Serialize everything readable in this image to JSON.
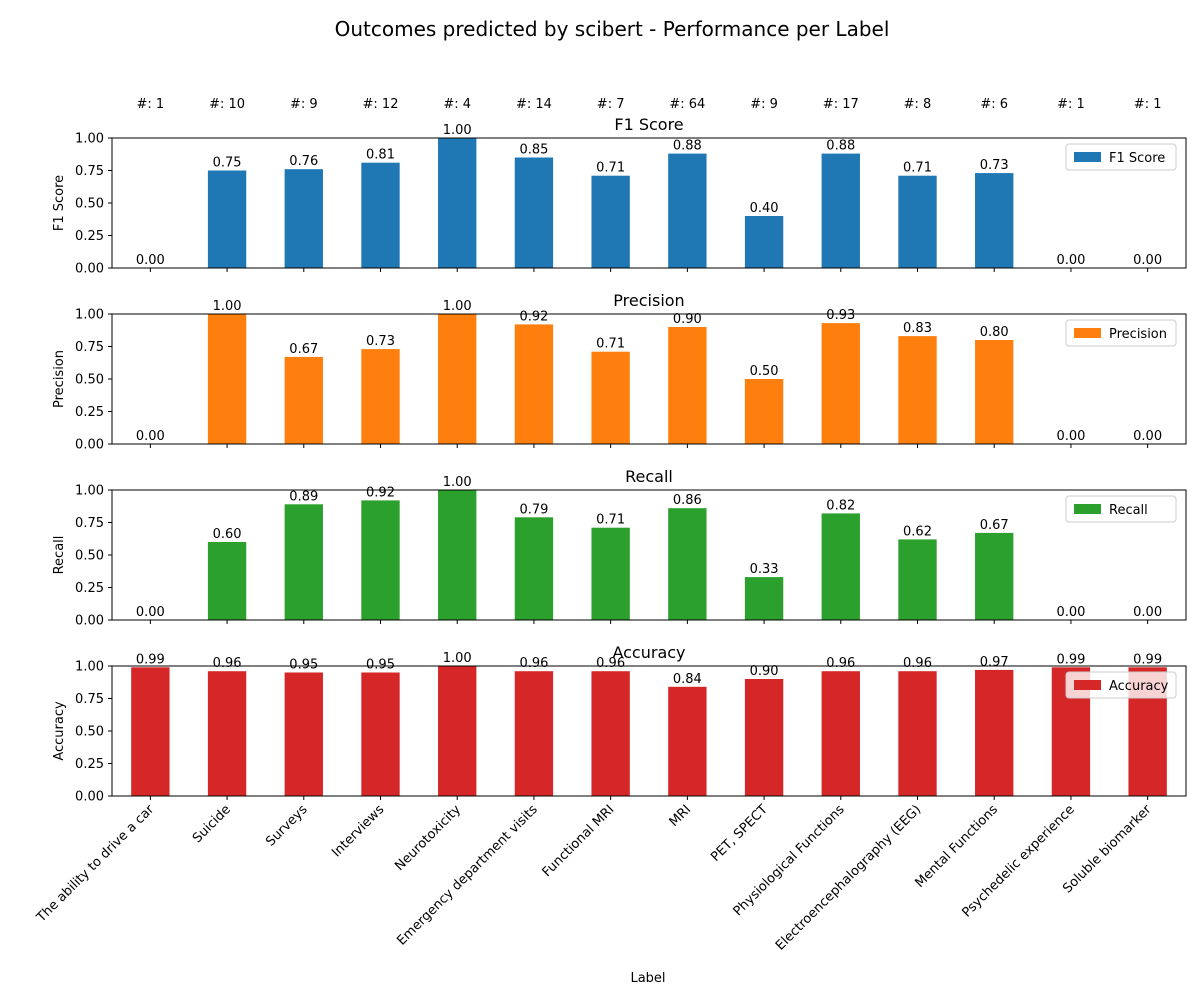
{
  "figure": {
    "title": "Outcomes predicted by scibert - Performance per Label",
    "xlabel": "Label"
  },
  "chart_data": {
    "type": "bar",
    "categories": [
      "The ability to drive a car",
      "Suicide",
      "Surveys",
      "Interviews",
      "Neurotoxicity",
      "Emergency department visits",
      "Functional MRI",
      "MRI",
      "PET, SPECT",
      "Physiological Functions",
      "Electroencephalography (EEG)",
      "Mental Functions",
      "Psychedelic experience",
      "Soluble biomarker"
    ],
    "counts": [
      "#: 1",
      "#: 10",
      "#: 9",
      "#: 12",
      "#: 4",
      "#: 14",
      "#: 7",
      "#: 64",
      "#: 9",
      "#: 17",
      "#: 8",
      "#: 6",
      "#: 1",
      "#: 1"
    ],
    "ylim": [
      0,
      1
    ],
    "yticks": [
      "0.00",
      "0.25",
      "0.50",
      "0.75",
      "1.00"
    ],
    "legend_position": "top-right",
    "series": [
      {
        "name": "F1 Score",
        "title": "F1 Score",
        "ylabel": "F1 Score",
        "color": "#1f77b4",
        "values": [
          0.0,
          0.75,
          0.76,
          0.81,
          1.0,
          0.85,
          0.71,
          0.88,
          0.4,
          0.88,
          0.71,
          0.73,
          0.0,
          0.0
        ],
        "labels": [
          "0.00",
          "0.75",
          "0.76",
          "0.81",
          "1.00",
          "0.85",
          "0.71",
          "0.88",
          "0.40",
          "0.88",
          "0.71",
          "0.73",
          "0.00",
          "0.00"
        ]
      },
      {
        "name": "Precision",
        "title": "Precision",
        "ylabel": "Precision",
        "color": "#ff7f0e",
        "values": [
          0.0,
          1.0,
          0.67,
          0.73,
          1.0,
          0.92,
          0.71,
          0.9,
          0.5,
          0.93,
          0.83,
          0.8,
          0.0,
          0.0
        ],
        "labels": [
          "0.00",
          "1.00",
          "0.67",
          "0.73",
          "1.00",
          "0.92",
          "0.71",
          "0.90",
          "0.50",
          "0.93",
          "0.83",
          "0.80",
          "0.00",
          "0.00"
        ]
      },
      {
        "name": "Recall",
        "title": "Recall",
        "ylabel": "Recall",
        "color": "#2ca02c",
        "values": [
          0.0,
          0.6,
          0.89,
          0.92,
          1.0,
          0.79,
          0.71,
          0.86,
          0.33,
          0.82,
          0.62,
          0.67,
          0.0,
          0.0
        ],
        "labels": [
          "0.00",
          "0.60",
          "0.89",
          "0.92",
          "1.00",
          "0.79",
          "0.71",
          "0.86",
          "0.33",
          "0.82",
          "0.62",
          "0.67",
          "0.00",
          "0.00"
        ]
      },
      {
        "name": "Accuracy",
        "title": "Accuracy",
        "ylabel": "Accuracy",
        "color": "#d62728",
        "values": [
          0.99,
          0.96,
          0.95,
          0.95,
          1.0,
          0.96,
          0.96,
          0.84,
          0.9,
          0.96,
          0.96,
          0.97,
          0.99,
          0.99
        ],
        "labels": [
          "0.99",
          "0.96",
          "0.95",
          "0.95",
          "1.00",
          "0.96",
          "0.96",
          "0.84",
          "0.90",
          "0.96",
          "0.96",
          "0.97",
          "0.99",
          "0.99"
        ]
      }
    ]
  }
}
